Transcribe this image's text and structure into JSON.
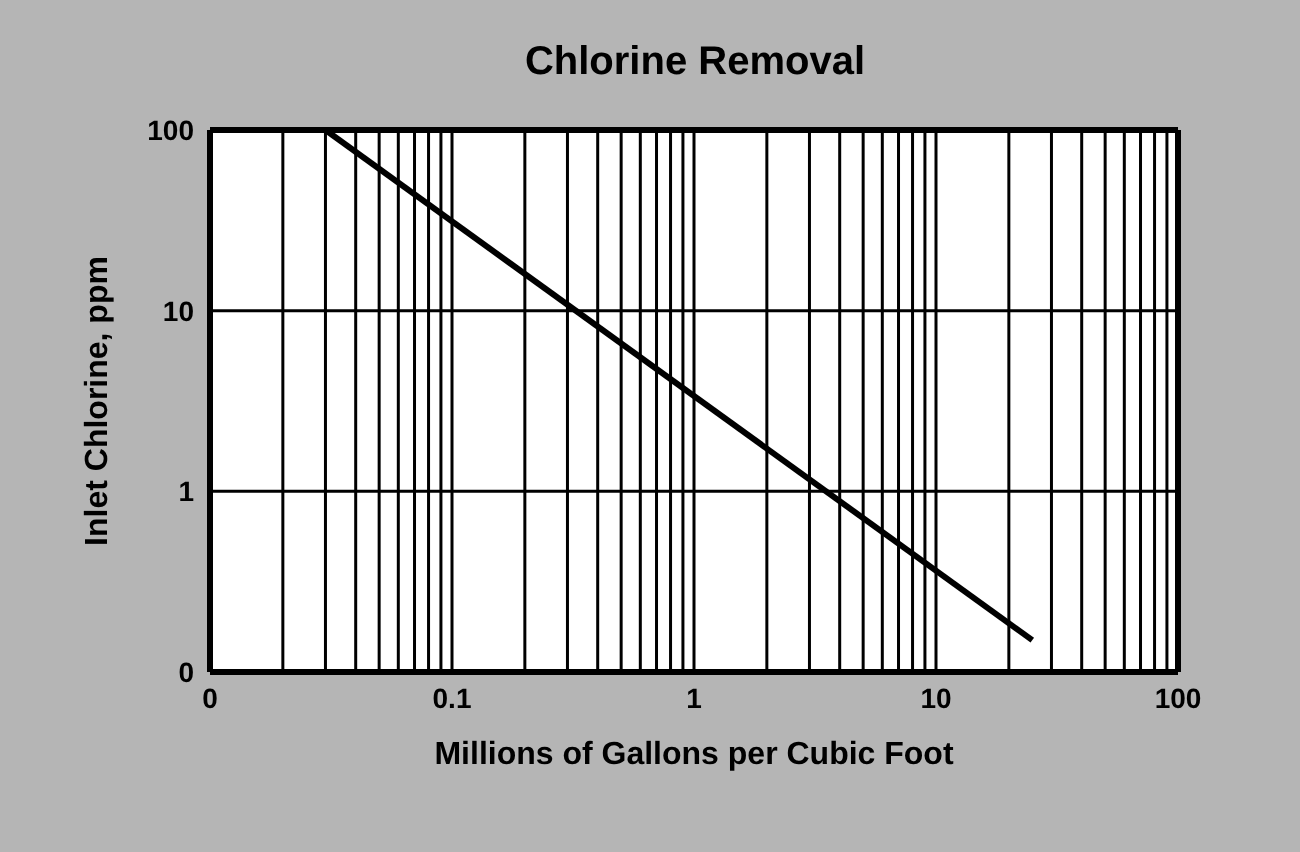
{
  "chart_data": {
    "type": "line",
    "title": "Chlorine Removal",
    "xlabel": "Millions of Gallons per Cubic Foot",
    "ylabel": "Inlet Chlorine, ppm",
    "log": "xy",
    "grid": true,
    "legend": false,
    "marker": "none",
    "line_style": "solid",
    "x": [
      0.03,
      25
    ],
    "series": [
      {
        "color": "#000000",
        "values": [
          100,
          0.15
        ]
      }
    ],
    "xlim": [
      0.01,
      100
    ],
    "ylim": [
      0.1,
      100
    ],
    "xticks": [
      {
        "value": 0.01,
        "label": "0"
      },
      {
        "value": 0.02,
        "label": null
      },
      {
        "value": 0.03,
        "label": null
      },
      {
        "value": 0.04,
        "label": null
      },
      {
        "value": 0.05,
        "label": null
      },
      {
        "value": 0.06,
        "label": null
      },
      {
        "value": 0.07,
        "label": null
      },
      {
        "value": 0.08,
        "label": null
      },
      {
        "value": 0.09,
        "label": null
      },
      0.1,
      {
        "value": 0.2,
        "label": null
      },
      {
        "value": 0.3,
        "label": null
      },
      {
        "value": 0.4,
        "label": null
      },
      {
        "value": 0.5,
        "label": null
      },
      {
        "value": 0.6,
        "label": null
      },
      {
        "value": 0.7,
        "label": null
      },
      {
        "value": 0.8,
        "label": null
      },
      {
        "value": 0.9,
        "label": null
      },
      1,
      {
        "value": 2,
        "label": null
      },
      {
        "value": 3,
        "label": null
      },
      {
        "value": 4,
        "label": null
      },
      {
        "value": 5,
        "label": null
      },
      {
        "value": 6,
        "label": null
      },
      {
        "value": 7,
        "label": null
      },
      {
        "value": 8,
        "label": null
      },
      {
        "value": 9,
        "label": null
      },
      10,
      {
        "value": 20,
        "label": null
      },
      {
        "value": 30,
        "label": null
      },
      {
        "value": 40,
        "label": null
      },
      {
        "value": 50,
        "label": null
      },
      {
        "value": 60,
        "label": null
      },
      {
        "value": 70,
        "label": null
      },
      {
        "value": 80,
        "label": null
      },
      {
        "value": 90,
        "label": null
      },
      100
    ],
    "yticks": [
      {
        "value": 0.1,
        "label": "0"
      },
      1,
      10,
      100
    ]
  }
}
